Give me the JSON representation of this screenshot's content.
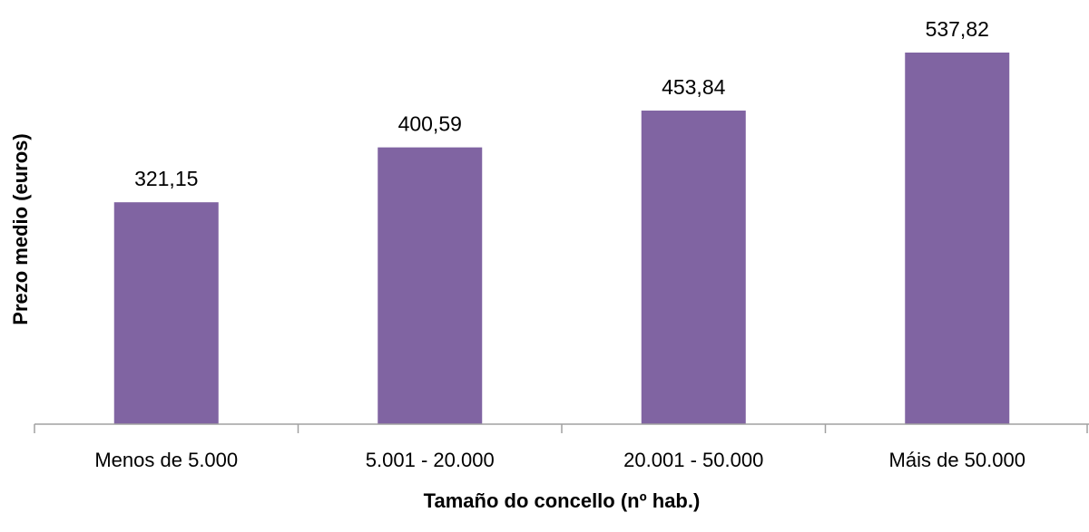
{
  "chart_data": {
    "type": "bar",
    "title": "",
    "xlabel": "Tamaño do concello (nº hab.)",
    "ylabel": "Prezo medio (euros)",
    "categories": [
      "Menos de 5.000",
      "5.001 - 20.000",
      "20.001 - 50.000",
      "Máis de 50.000"
    ],
    "values": [
      321.15,
      400.59,
      453.84,
      537.82
    ],
    "data_labels": [
      "321,15",
      "400,59",
      "453,84",
      "537,82"
    ],
    "ylim": [
      0,
      600
    ],
    "grid": false,
    "legend": "none",
    "bar_color": "#8064A2"
  }
}
